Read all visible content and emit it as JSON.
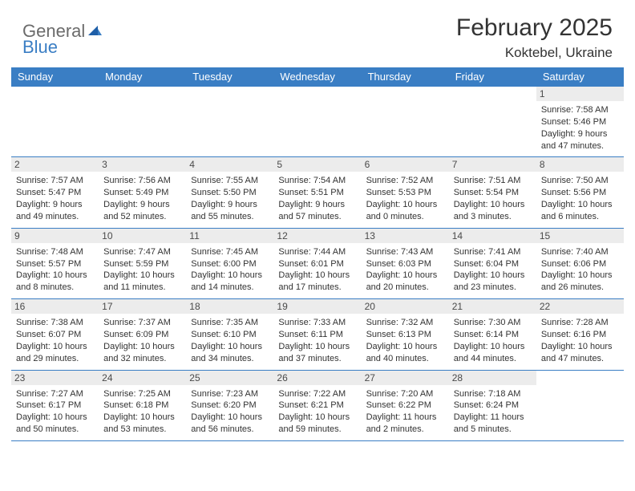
{
  "logo": {
    "general": "General",
    "blue": "Blue"
  },
  "title": "February 2025",
  "location": "Koktebel, Ukraine",
  "colors": {
    "header_bg": "#3a7ec4",
    "header_text": "#ffffff",
    "daynum_bg": "#ececec",
    "daynum_text": "#4a4a4a",
    "body_text": "#333333",
    "logo_gray": "#6b6b6b",
    "logo_blue": "#3a7ec4",
    "border": "#3a7ec4",
    "background": "#ffffff"
  },
  "fonts": {
    "title_size": 30,
    "location_size": 17,
    "header_cell_size": 13,
    "daynum_size": 12,
    "info_size": 11
  },
  "day_headers": [
    "Sunday",
    "Monday",
    "Tuesday",
    "Wednesday",
    "Thursday",
    "Friday",
    "Saturday"
  ],
  "weeks": [
    [
      null,
      null,
      null,
      null,
      null,
      null,
      {
        "n": "1",
        "sunrise": "Sunrise: 7:58 AM",
        "sunset": "Sunset: 5:46 PM",
        "daylight": "Daylight: 9 hours and 47 minutes."
      }
    ],
    [
      {
        "n": "2",
        "sunrise": "Sunrise: 7:57 AM",
        "sunset": "Sunset: 5:47 PM",
        "daylight": "Daylight: 9 hours and 49 minutes."
      },
      {
        "n": "3",
        "sunrise": "Sunrise: 7:56 AM",
        "sunset": "Sunset: 5:49 PM",
        "daylight": "Daylight: 9 hours and 52 minutes."
      },
      {
        "n": "4",
        "sunrise": "Sunrise: 7:55 AM",
        "sunset": "Sunset: 5:50 PM",
        "daylight": "Daylight: 9 hours and 55 minutes."
      },
      {
        "n": "5",
        "sunrise": "Sunrise: 7:54 AM",
        "sunset": "Sunset: 5:51 PM",
        "daylight": "Daylight: 9 hours and 57 minutes."
      },
      {
        "n": "6",
        "sunrise": "Sunrise: 7:52 AM",
        "sunset": "Sunset: 5:53 PM",
        "daylight": "Daylight: 10 hours and 0 minutes."
      },
      {
        "n": "7",
        "sunrise": "Sunrise: 7:51 AM",
        "sunset": "Sunset: 5:54 PM",
        "daylight": "Daylight: 10 hours and 3 minutes."
      },
      {
        "n": "8",
        "sunrise": "Sunrise: 7:50 AM",
        "sunset": "Sunset: 5:56 PM",
        "daylight": "Daylight: 10 hours and 6 minutes."
      }
    ],
    [
      {
        "n": "9",
        "sunrise": "Sunrise: 7:48 AM",
        "sunset": "Sunset: 5:57 PM",
        "daylight": "Daylight: 10 hours and 8 minutes."
      },
      {
        "n": "10",
        "sunrise": "Sunrise: 7:47 AM",
        "sunset": "Sunset: 5:59 PM",
        "daylight": "Daylight: 10 hours and 11 minutes."
      },
      {
        "n": "11",
        "sunrise": "Sunrise: 7:45 AM",
        "sunset": "Sunset: 6:00 PM",
        "daylight": "Daylight: 10 hours and 14 minutes."
      },
      {
        "n": "12",
        "sunrise": "Sunrise: 7:44 AM",
        "sunset": "Sunset: 6:01 PM",
        "daylight": "Daylight: 10 hours and 17 minutes."
      },
      {
        "n": "13",
        "sunrise": "Sunrise: 7:43 AM",
        "sunset": "Sunset: 6:03 PM",
        "daylight": "Daylight: 10 hours and 20 minutes."
      },
      {
        "n": "14",
        "sunrise": "Sunrise: 7:41 AM",
        "sunset": "Sunset: 6:04 PM",
        "daylight": "Daylight: 10 hours and 23 minutes."
      },
      {
        "n": "15",
        "sunrise": "Sunrise: 7:40 AM",
        "sunset": "Sunset: 6:06 PM",
        "daylight": "Daylight: 10 hours and 26 minutes."
      }
    ],
    [
      {
        "n": "16",
        "sunrise": "Sunrise: 7:38 AM",
        "sunset": "Sunset: 6:07 PM",
        "daylight": "Daylight: 10 hours and 29 minutes."
      },
      {
        "n": "17",
        "sunrise": "Sunrise: 7:37 AM",
        "sunset": "Sunset: 6:09 PM",
        "daylight": "Daylight: 10 hours and 32 minutes."
      },
      {
        "n": "18",
        "sunrise": "Sunrise: 7:35 AM",
        "sunset": "Sunset: 6:10 PM",
        "daylight": "Daylight: 10 hours and 34 minutes."
      },
      {
        "n": "19",
        "sunrise": "Sunrise: 7:33 AM",
        "sunset": "Sunset: 6:11 PM",
        "daylight": "Daylight: 10 hours and 37 minutes."
      },
      {
        "n": "20",
        "sunrise": "Sunrise: 7:32 AM",
        "sunset": "Sunset: 6:13 PM",
        "daylight": "Daylight: 10 hours and 40 minutes."
      },
      {
        "n": "21",
        "sunrise": "Sunrise: 7:30 AM",
        "sunset": "Sunset: 6:14 PM",
        "daylight": "Daylight: 10 hours and 44 minutes."
      },
      {
        "n": "22",
        "sunrise": "Sunrise: 7:28 AM",
        "sunset": "Sunset: 6:16 PM",
        "daylight": "Daylight: 10 hours and 47 minutes."
      }
    ],
    [
      {
        "n": "23",
        "sunrise": "Sunrise: 7:27 AM",
        "sunset": "Sunset: 6:17 PM",
        "daylight": "Daylight: 10 hours and 50 minutes."
      },
      {
        "n": "24",
        "sunrise": "Sunrise: 7:25 AM",
        "sunset": "Sunset: 6:18 PM",
        "daylight": "Daylight: 10 hours and 53 minutes."
      },
      {
        "n": "25",
        "sunrise": "Sunrise: 7:23 AM",
        "sunset": "Sunset: 6:20 PM",
        "daylight": "Daylight: 10 hours and 56 minutes."
      },
      {
        "n": "26",
        "sunrise": "Sunrise: 7:22 AM",
        "sunset": "Sunset: 6:21 PM",
        "daylight": "Daylight: 10 hours and 59 minutes."
      },
      {
        "n": "27",
        "sunrise": "Sunrise: 7:20 AM",
        "sunset": "Sunset: 6:22 PM",
        "daylight": "Daylight: 11 hours and 2 minutes."
      },
      {
        "n": "28",
        "sunrise": "Sunrise: 7:18 AM",
        "sunset": "Sunset: 6:24 PM",
        "daylight": "Daylight: 11 hours and 5 minutes."
      },
      null
    ]
  ]
}
